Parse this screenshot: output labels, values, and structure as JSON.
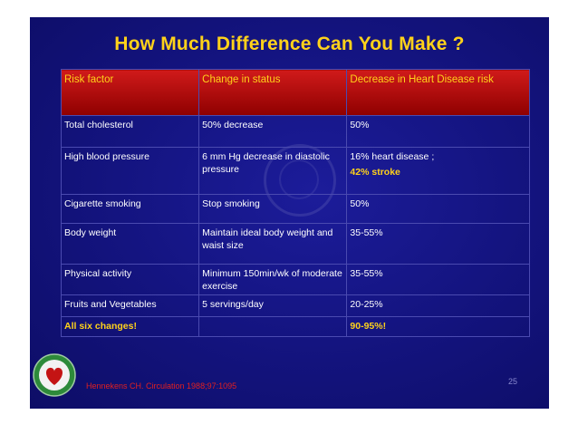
{
  "slide": {
    "title": "How Much Difference Can You Make ?",
    "table": {
      "headers": [
        "Risk factor",
        "Change in status",
        "Decrease in Heart Disease risk"
      ],
      "rows": [
        {
          "factor": "Total cholesterol",
          "change": "50% decrease",
          "risk": "50%",
          "risk_extra": ""
        },
        {
          "factor": "High blood pressure",
          "change": "6 mm Hg decrease in diastolic pressure",
          "risk": "16% heart disease ;",
          "risk_extra": "42% stroke"
        },
        {
          "factor": "Cigarette smoking",
          "change": "Stop smoking",
          "risk": "50%",
          "risk_extra": ""
        },
        {
          "factor": "Body weight",
          "change": "Maintain ideal body weight and waist size",
          "risk": "35-55%",
          "risk_extra": ""
        },
        {
          "factor": "Physical activity",
          "change": "Minimum 150min/wk of moderate exercise",
          "risk": "35-55%",
          "risk_extra": ""
        },
        {
          "factor": "Fruits and Vegetables",
          "change": "5 servings/day",
          "risk": "20-25%",
          "risk_extra": ""
        }
      ],
      "total": {
        "factor": "All six changes!",
        "change": "",
        "risk": "90-95%!"
      }
    },
    "citation": "Hennekens CH. Circulation 1988;97:1095",
    "page_number": "25"
  },
  "colors": {
    "background": "#13137d",
    "title": "#ffd21a",
    "header_fill": "#b00000",
    "citation": "#e02020"
  }
}
